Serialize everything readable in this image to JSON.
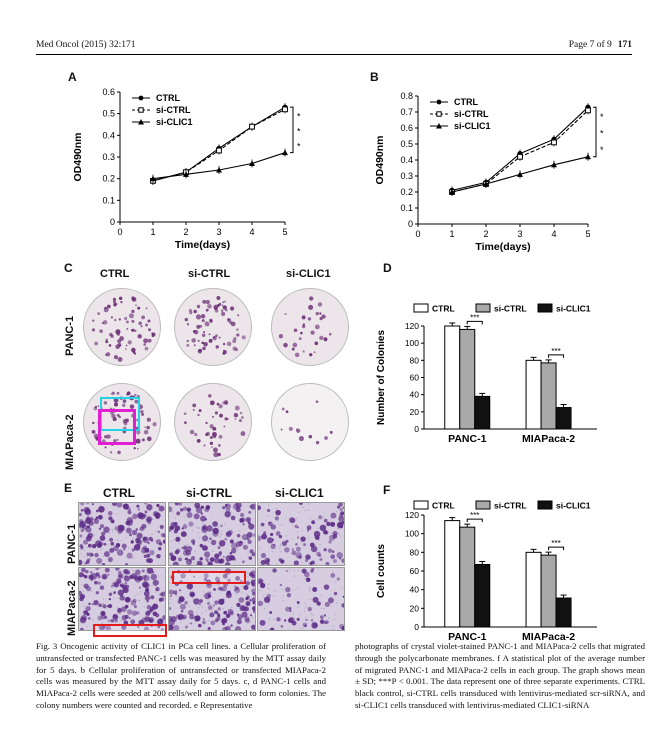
{
  "header": {
    "journal": "Med Oncol (2015) 32:171",
    "page": "Page 7 of 9",
    "article_no": "171"
  },
  "panels": {
    "a": "A",
    "b": "B",
    "c": "C",
    "d": "D",
    "e": "E",
    "f": "F"
  },
  "colony_panel": {
    "col_labels": [
      "CTRL",
      "si-CTRL",
      "si-CLIC1"
    ],
    "row_labels": [
      "PANC-1",
      "MIAPaca-2"
    ]
  },
  "migration_panel": {
    "col_labels": [
      "CTRL",
      "si-CTRL",
      "si-CLIC1"
    ],
    "row_labels": [
      "PANC-1",
      "MIAPaca-2"
    ]
  },
  "colors": {
    "colony_stain": "#6a2a73",
    "dish_bg": "#ece6ea",
    "migration_bg": "#d7cde0",
    "migration_cell": "#5b2a86",
    "highlight_cyan": "#22d3e6",
    "highlight_magenta": "#e020d0",
    "highlight_red": "#e31b1b",
    "bar_ctrl": "#ffffff",
    "bar_sictrl": "#a9a9a9",
    "bar_siclic1": "#111111"
  },
  "chart_data": [
    {
      "id": "A",
      "type": "line",
      "x": [
        1,
        2,
        3,
        4,
        5
      ],
      "series": [
        {
          "name": "CTRL",
          "values": [
            0.19,
            0.23,
            0.34,
            0.44,
            0.53
          ],
          "marker": "circle",
          "dash": false
        },
        {
          "name": "si-CTRL",
          "values": [
            0.19,
            0.23,
            0.33,
            0.44,
            0.52
          ],
          "marker": "square",
          "dash": true
        },
        {
          "name": "si-CLIC1",
          "values": [
            0.2,
            0.22,
            0.24,
            0.27,
            0.32
          ],
          "marker": "triangle",
          "dash": false
        }
      ],
      "xlabel": "Time(days)",
      "ylabel": "OD490nm",
      "xlim": [
        0,
        5
      ],
      "ylim": [
        0,
        0.6
      ],
      "yticks": [
        "0",
        "0.1",
        "0.2",
        "0.3",
        "0.4",
        "0.5",
        "0.6"
      ],
      "xticks": [
        "0",
        "1",
        "2",
        "3",
        "4",
        "5"
      ],
      "significance": "***",
      "legend": "top-left"
    },
    {
      "id": "B",
      "type": "line",
      "x": [
        1,
        2,
        3,
        4,
        5
      ],
      "series": [
        {
          "name": "CTRL",
          "values": [
            0.21,
            0.26,
            0.44,
            0.53,
            0.73
          ],
          "marker": "circle",
          "dash": false
        },
        {
          "name": "si-CTRL",
          "values": [
            0.2,
            0.25,
            0.42,
            0.51,
            0.71
          ],
          "marker": "square",
          "dash": true
        },
        {
          "name": "si-CLIC1",
          "values": [
            0.2,
            0.25,
            0.31,
            0.37,
            0.42
          ],
          "marker": "triangle",
          "dash": false
        }
      ],
      "xlabel": "Time(days)",
      "ylabel": "OD490nm",
      "xlim": [
        0,
        5
      ],
      "ylim": [
        0,
        0.8
      ],
      "yticks": [
        "0",
        "0.1",
        "0.2",
        "0.3",
        "0.4",
        "0.5",
        "0.6",
        "0.7",
        "0.8"
      ],
      "xticks": [
        "0",
        "1",
        "2",
        "3",
        "4",
        "5"
      ],
      "significance": "***",
      "legend": "top-left"
    },
    {
      "id": "D",
      "type": "bar",
      "categories": [
        "PANC-1",
        "MIAPaca-2"
      ],
      "series": [
        {
          "name": "CTRL",
          "values": [
            120,
            80
          ]
        },
        {
          "name": "si-CTRL",
          "values": [
            116,
            77
          ]
        },
        {
          "name": "si-CLIC1",
          "values": [
            38,
            25
          ]
        }
      ],
      "ylabel": "Number of Colonies",
      "ylim": [
        0,
        120
      ],
      "yticks": [
        "0",
        "20",
        "40",
        "60",
        "80",
        "100",
        "120"
      ],
      "significance": "***",
      "legend": "top"
    },
    {
      "id": "F",
      "type": "bar",
      "categories": [
        "PANC-1",
        "MIAPaca-2"
      ],
      "series": [
        {
          "name": "CTRL",
          "values": [
            114,
            80
          ]
        },
        {
          "name": "si-CTRL",
          "values": [
            107,
            77
          ]
        },
        {
          "name": "si-CLIC1",
          "values": [
            67,
            31
          ]
        }
      ],
      "ylabel": "Cell counts",
      "ylim": [
        0,
        120
      ],
      "yticks": [
        "0",
        "20",
        "40",
        "60",
        "80",
        "100",
        "120"
      ],
      "significance": "***",
      "legend": "top"
    }
  ],
  "caption": {
    "left": "Fig. 3 Oncogenic activity of CLIC1 in PCa cell lines. a Cellular proliferation of untransfected or transfected PANC-1 cells was measured by the MTT assay daily for 5 days. b Cellular proliferation of untransfected or transfected MIAPaca-2 cells was measured by the MTT assay daily for 5 days. c, d PANC-1 cells and MIAPaca-2 cells were seeded at 200 cells/well and allowed to form colonies. The colony numbers were counted and recorded. e Representative",
    "right": "photographs of crystal violet-stained PANC-1 and MIAPaca-2 cells that migrated through the polycarbonate membranes. f A statistical plot of the average number of migrated PANC-1 and MIAPaca-2 cells in each group. The graph shows mean ± SD; ***P < 0.001. The data represent one of three separate experiments. CTRL black control, si-CTRL cells transduced with lentivirus-mediated scr-siRNA, and si-CLIC1 cells transduced with lentivirus-mediated CLIC1-siRNA"
  }
}
